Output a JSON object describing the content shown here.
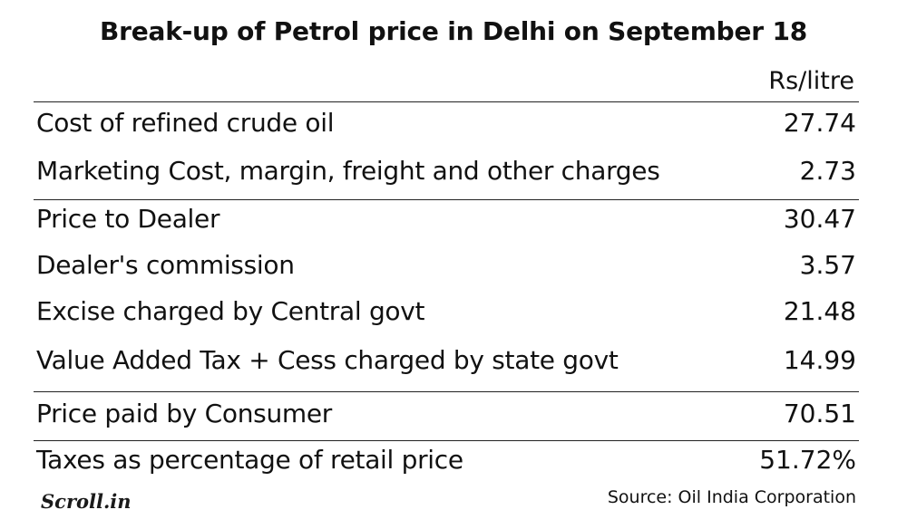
{
  "chart_data": {
    "type": "table",
    "title": "Break-up of Petrol price in Delhi on September 18",
    "unit": "Rs/litre",
    "rows": [
      {
        "label": "Cost of refined crude oil",
        "value": "27.74"
      },
      {
        "label": "Marketing Cost, margin, freight and other charges",
        "value": "2.73"
      },
      {
        "label": "Price to Dealer",
        "value": "30.47"
      },
      {
        "label": "Dealer's commission",
        "value": "3.57"
      },
      {
        "label": "Excise charged by Central govt",
        "value": "21.48"
      },
      {
        "label": "Value Added Tax + Cess charged by state govt",
        "value": "14.99"
      },
      {
        "label": "Price paid by Consumer",
        "value": "70.51"
      },
      {
        "label": "Taxes as percentage of retail price",
        "value": "51.72%"
      }
    ]
  },
  "footer": {
    "brand": "Scroll.in",
    "source": "Source: Oil India Corporation"
  }
}
